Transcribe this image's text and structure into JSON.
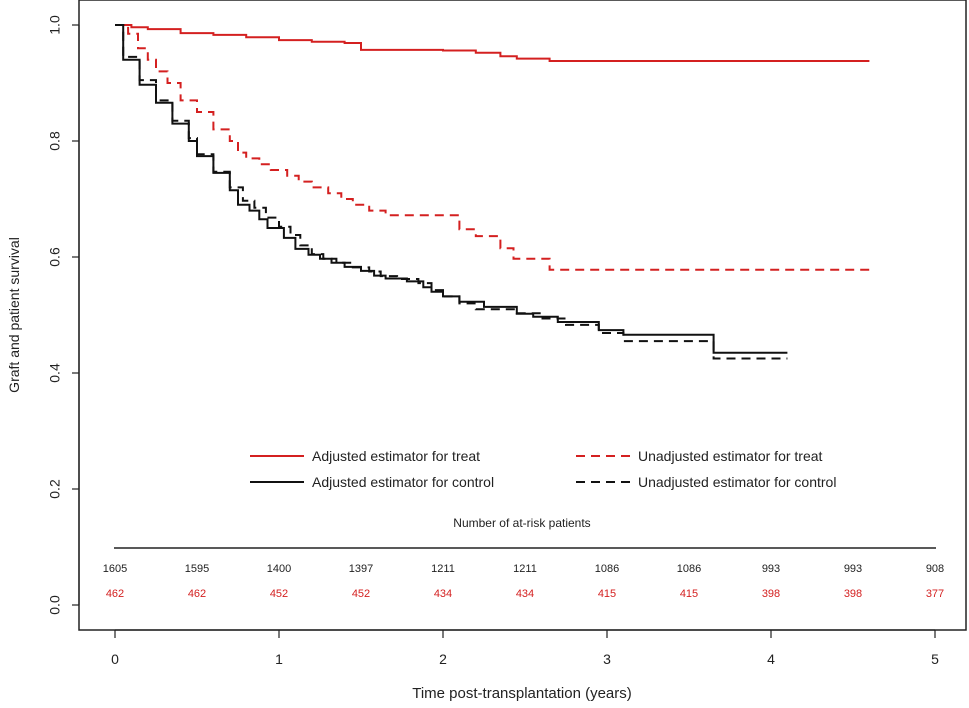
{
  "chart_data": {
    "type": "line",
    "ylabel": "Graft and patient survival",
    "xlabel": "Time post-transplantation (years)",
    "xlim": [
      0,
      5
    ],
    "ylim": [
      0,
      1
    ],
    "x_ticks": [
      "0",
      "1",
      "2",
      "3",
      "4",
      "5"
    ],
    "y_ticks": [
      "0.0",
      "0.2",
      "0.4",
      "0.6",
      "0.8",
      "1.0"
    ],
    "series": [
      {
        "key": "adj_treat",
        "name": "Adjusted estimator for treat",
        "color": "#d42020",
        "dash": "solid",
        "points": [
          [
            0,
            1.0
          ],
          [
            0.1,
            0.996
          ],
          [
            0.2,
            0.993
          ],
          [
            0.4,
            0.986
          ],
          [
            0.6,
            0.983
          ],
          [
            0.8,
            0.979
          ],
          [
            1.0,
            0.974
          ],
          [
            1.2,
            0.971
          ],
          [
            1.4,
            0.969
          ],
          [
            1.5,
            0.957
          ],
          [
            2.0,
            0.956
          ],
          [
            2.2,
            0.952
          ],
          [
            2.35,
            0.946
          ],
          [
            2.45,
            0.942
          ],
          [
            2.65,
            0.938
          ],
          [
            3.0,
            0.938
          ],
          [
            4.6,
            0.938
          ]
        ]
      },
      {
        "key": "unadj_treat",
        "name": "Unadjusted estimator for treat",
        "color": "#d42020",
        "dash": "dashed",
        "points": [
          [
            0,
            1.0
          ],
          [
            0.08,
            0.985
          ],
          [
            0.14,
            0.96
          ],
          [
            0.2,
            0.94
          ],
          [
            0.25,
            0.92
          ],
          [
            0.32,
            0.9
          ],
          [
            0.4,
            0.87
          ],
          [
            0.5,
            0.85
          ],
          [
            0.6,
            0.82
          ],
          [
            0.7,
            0.8
          ],
          [
            0.75,
            0.78
          ],
          [
            0.8,
            0.77
          ],
          [
            0.88,
            0.76
          ],
          [
            0.95,
            0.75
          ],
          [
            1.05,
            0.74
          ],
          [
            1.12,
            0.73
          ],
          [
            1.2,
            0.72
          ],
          [
            1.3,
            0.71
          ],
          [
            1.38,
            0.7
          ],
          [
            1.45,
            0.69
          ],
          [
            1.55,
            0.68
          ],
          [
            1.65,
            0.672
          ],
          [
            2.1,
            0.648
          ],
          [
            2.2,
            0.636
          ],
          [
            2.35,
            0.615
          ],
          [
            2.43,
            0.597
          ],
          [
            2.65,
            0.578
          ],
          [
            4.6,
            0.578
          ]
        ]
      },
      {
        "key": "adj_control",
        "name": "Adjusted estimator for control",
        "color": "#111111",
        "dash": "solid",
        "points": [
          [
            0,
            1.0
          ],
          [
            0.05,
            0.94
          ],
          [
            0.15,
            0.897
          ],
          [
            0.25,
            0.866
          ],
          [
            0.35,
            0.83
          ],
          [
            0.45,
            0.8
          ],
          [
            0.5,
            0.774
          ],
          [
            0.6,
            0.745
          ],
          [
            0.7,
            0.715
          ],
          [
            0.75,
            0.69
          ],
          [
            0.82,
            0.68
          ],
          [
            0.88,
            0.665
          ],
          [
            0.93,
            0.65
          ],
          [
            1.03,
            0.633
          ],
          [
            1.1,
            0.614
          ],
          [
            1.18,
            0.604
          ],
          [
            1.25,
            0.597
          ],
          [
            1.32,
            0.59
          ],
          [
            1.4,
            0.583
          ],
          [
            1.5,
            0.576
          ],
          [
            1.58,
            0.568
          ],
          [
            1.65,
            0.563
          ],
          [
            1.78,
            0.558
          ],
          [
            1.88,
            0.548
          ],
          [
            1.93,
            0.54
          ],
          [
            2.0,
            0.532
          ],
          [
            2.1,
            0.523
          ],
          [
            2.25,
            0.514
          ],
          [
            2.45,
            0.502
          ],
          [
            2.55,
            0.497
          ],
          [
            2.7,
            0.488
          ],
          [
            2.95,
            0.474
          ],
          [
            3.1,
            0.466
          ],
          [
            3.3,
            0.466
          ],
          [
            3.65,
            0.435
          ],
          [
            4.1,
            0.435
          ]
        ]
      },
      {
        "key": "unadj_control",
        "name": "Unadjusted estimator for control",
        "color": "#111111",
        "dash": "dashed",
        "points": [
          [
            0,
            1.0
          ],
          [
            0.05,
            0.945
          ],
          [
            0.15,
            0.905
          ],
          [
            0.25,
            0.87
          ],
          [
            0.35,
            0.835
          ],
          [
            0.45,
            0.805
          ],
          [
            0.5,
            0.777
          ],
          [
            0.6,
            0.747
          ],
          [
            0.7,
            0.72
          ],
          [
            0.78,
            0.697
          ],
          [
            0.85,
            0.685
          ],
          [
            0.92,
            0.668
          ],
          [
            1.0,
            0.652
          ],
          [
            1.07,
            0.638
          ],
          [
            1.13,
            0.62
          ],
          [
            1.2,
            0.605
          ],
          [
            1.27,
            0.597
          ],
          [
            1.35,
            0.59
          ],
          [
            1.45,
            0.582
          ],
          [
            1.55,
            0.575
          ],
          [
            1.62,
            0.567
          ],
          [
            1.72,
            0.562
          ],
          [
            1.85,
            0.555
          ],
          [
            1.93,
            0.543
          ],
          [
            2.0,
            0.532
          ],
          [
            2.1,
            0.52
          ],
          [
            2.2,
            0.51
          ],
          [
            2.45,
            0.503
          ],
          [
            2.6,
            0.494
          ],
          [
            2.75,
            0.483
          ],
          [
            2.95,
            0.469
          ],
          [
            3.1,
            0.455
          ],
          [
            3.65,
            0.425
          ],
          [
            4.1,
            0.425
          ]
        ]
      }
    ],
    "legend": {
      "placement": "bottom-center",
      "order_left": [
        "adj_treat",
        "adj_control"
      ],
      "order_right": [
        "unadj_treat",
        "unadj_control"
      ]
    },
    "at_risk": {
      "title": "Number of at-risk patients",
      "times": [
        0,
        0.5,
        1,
        1.5,
        2,
        2.5,
        3,
        3.5,
        4,
        4.5,
        5
      ],
      "rows": [
        {
          "name": "control",
          "color": "#222222",
          "values": [
            "1605",
            "1595",
            "1400",
            "1397",
            "1211",
            "1211",
            "1086",
            "1086",
            "993",
            "993",
            "908"
          ]
        },
        {
          "name": "treat",
          "color": "#d42020",
          "values": [
            "462",
            "462",
            "452",
            "452",
            "434",
            "434",
            "415",
            "415",
            "398",
            "398",
            "377"
          ]
        }
      ]
    }
  }
}
